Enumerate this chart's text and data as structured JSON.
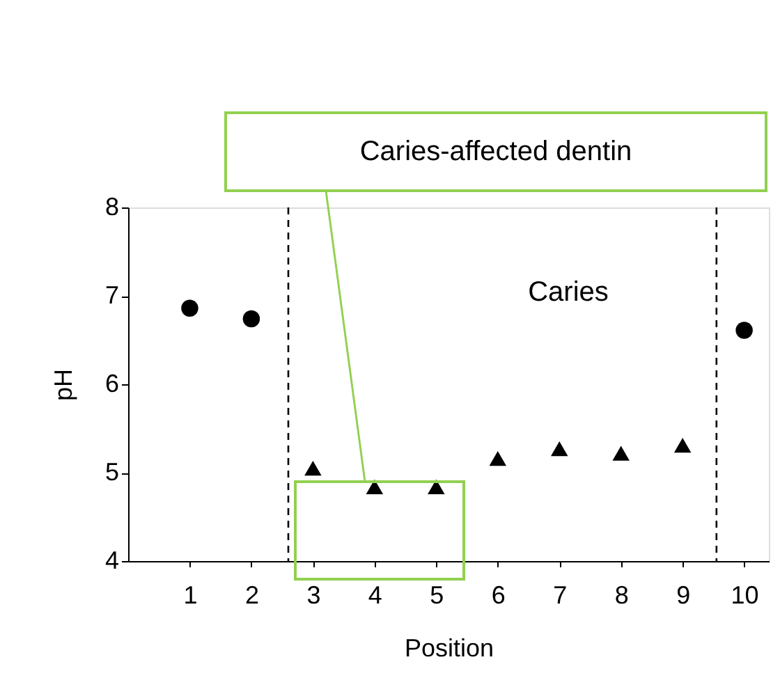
{
  "chart_data": {
    "type": "scatter",
    "xlabel": "Position",
    "ylabel": "pH",
    "xlim": [
      0,
      10.4
    ],
    "xticks": [
      1,
      2,
      3,
      4,
      5,
      6,
      7,
      8,
      9,
      10
    ],
    "ylim": [
      4,
      8
    ],
    "yticks": [
      4,
      5,
      6,
      7,
      8
    ],
    "grid": false,
    "series": [
      {
        "color": "#000000",
        "marker": "circle",
        "x": [
          1,
          2,
          10
        ],
        "values": [
          6.86,
          6.74,
          6.61
        ]
      },
      {
        "color": "#000000",
        "marker": "triangle",
        "x": [
          3,
          4,
          5,
          6,
          7,
          8,
          9
        ],
        "values": [
          5.05,
          4.84,
          4.84,
          5.16,
          5.27,
          5.22,
          5.31
        ]
      }
    ],
    "ref_lines": [
      {
        "axis": "x",
        "value": 2.6,
        "line_style": "dashed",
        "color": "#000000"
      },
      {
        "axis": "x",
        "value": 9.55,
        "line_style": "dashed",
        "color": "#000000"
      }
    ],
    "annotations": [
      "Caries",
      "Caries-affected dentin"
    ]
  }
}
